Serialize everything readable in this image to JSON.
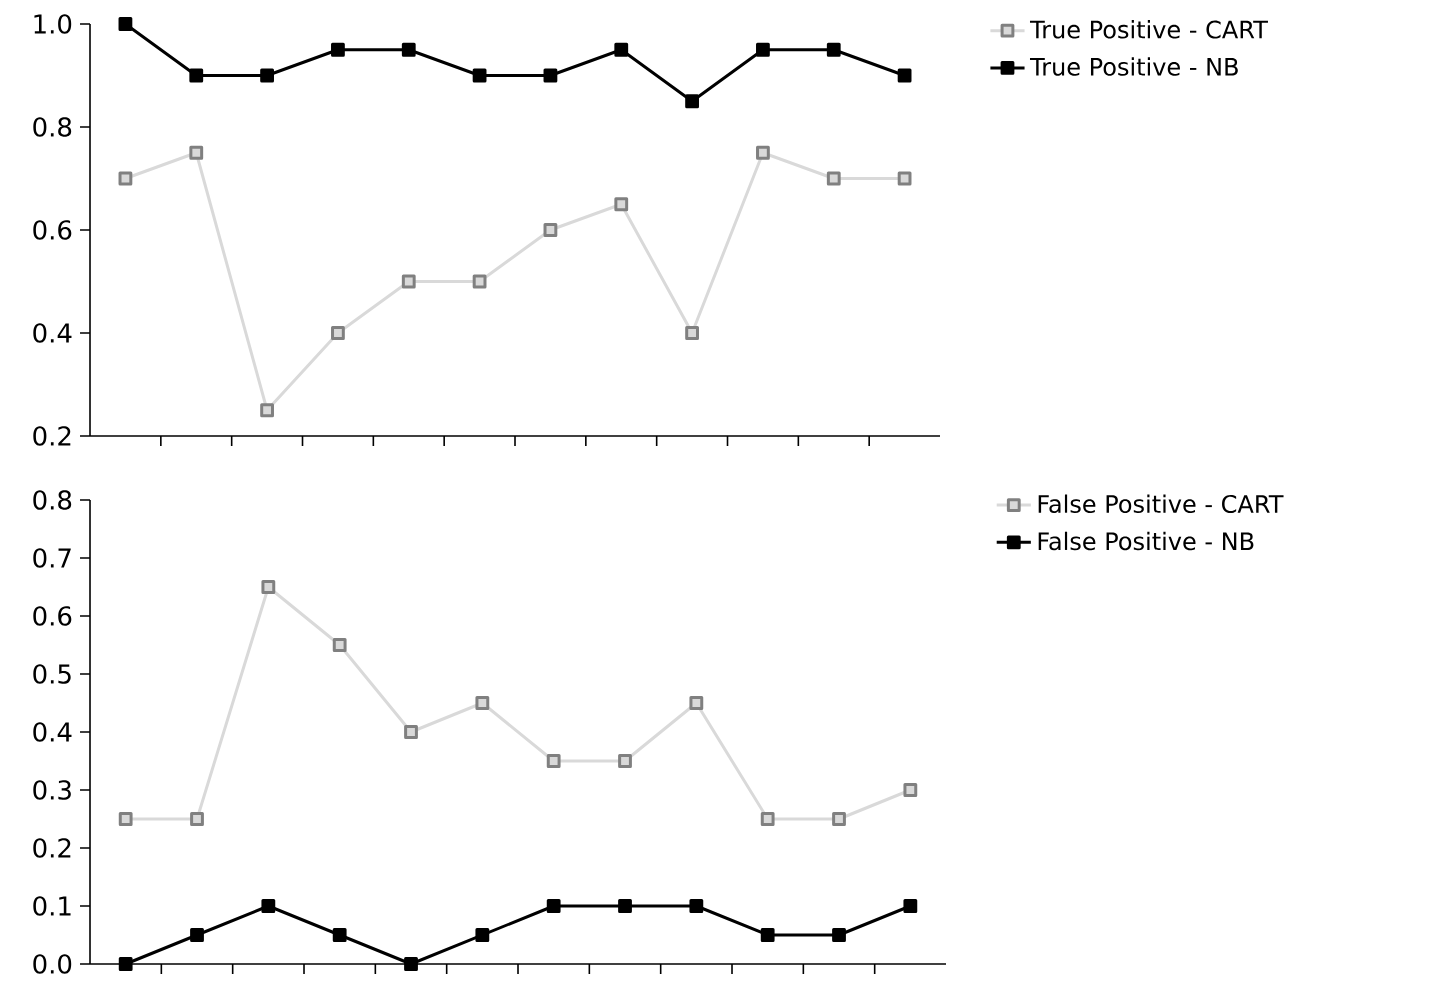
{
  "chart_data": [
    {
      "type": "line",
      "categories": [
        null,
        null,
        null,
        null,
        null,
        null,
        null,
        null,
        null,
        null,
        null,
        null
      ],
      "ylim": [
        0.2,
        1.0
      ],
      "yticks": [
        {
          "value": 0.2,
          "label": "0.2"
        },
        {
          "value": 0.4,
          "label": "0.4"
        },
        {
          "value": 0.6,
          "label": "0.6"
        },
        {
          "value": 0.8,
          "label": "0.8"
        },
        {
          "value": 1.0,
          "label": "1.0"
        }
      ],
      "grid": false,
      "legend": "top right",
      "marker": "square",
      "line_style": "solid",
      "series": [
        {
          "name": "True Positive - CART",
          "color": "#d9d9d9",
          "values": [
            0.7,
            0.75,
            0.25,
            0.4,
            0.5,
            0.5,
            0.6,
            0.65,
            0.4,
            0.75,
            0.7,
            0.7
          ]
        },
        {
          "name": "True Positive - NB",
          "color": "#000000",
          "values": [
            1.0,
            0.9,
            0.9,
            0.95,
            0.95,
            0.9,
            0.9,
            0.95,
            0.85,
            0.95,
            0.95,
            0.9
          ]
        }
      ]
    },
    {
      "type": "line",
      "categories": [
        null,
        null,
        null,
        null,
        null,
        null,
        null,
        null,
        null,
        null,
        null,
        null
      ],
      "ylim": [
        0.0,
        0.8
      ],
      "yticks": [
        {
          "value": 0.0,
          "label": "0.0"
        },
        {
          "value": 0.1,
          "label": "0.1"
        },
        {
          "value": 0.2,
          "label": "0.2"
        },
        {
          "value": 0.3,
          "label": "0.3"
        },
        {
          "value": 0.4,
          "label": "0.4"
        },
        {
          "value": 0.5,
          "label": "0.5"
        },
        {
          "value": 0.6,
          "label": "0.6"
        },
        {
          "value": 0.7,
          "label": "0.7"
        },
        {
          "value": 0.8,
          "label": "0.8"
        }
      ],
      "grid": false,
      "legend": "top right",
      "marker": "square",
      "line_style": "solid",
      "series": [
        {
          "name": "False Positive - CART",
          "color": "#d9d9d9",
          "values": [
            0.25,
            0.25,
            0.65,
            0.55,
            0.4,
            0.45,
            0.35,
            0.35,
            0.45,
            0.25,
            0.25,
            0.3
          ]
        },
        {
          "name": "False Positive - NB",
          "color": "#000000",
          "values": [
            0.0,
            0.05,
            0.1,
            0.05,
            0.0,
            0.05,
            0.1,
            0.1,
            0.1,
            0.05,
            0.05,
            0.1
          ]
        }
      ]
    }
  ]
}
